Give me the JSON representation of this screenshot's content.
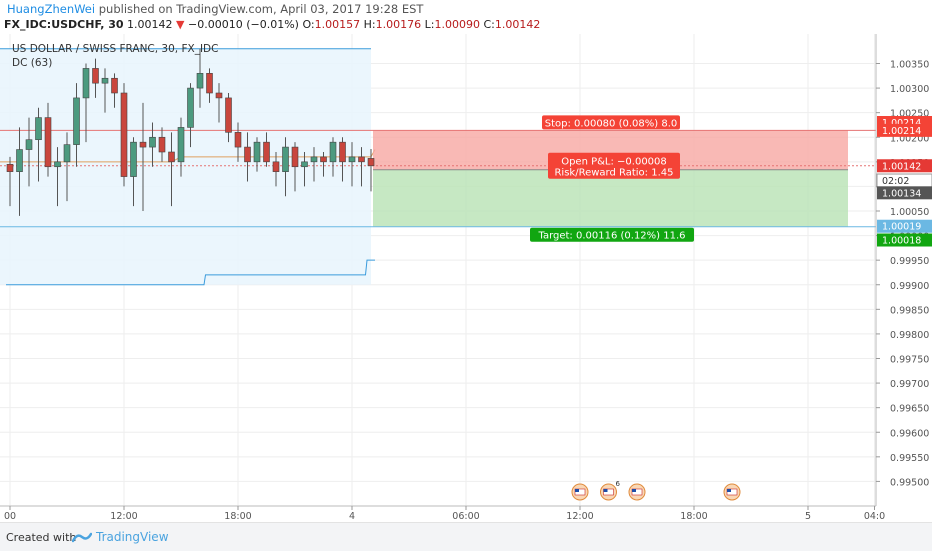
{
  "header": {
    "author": "HuangZhenWei",
    "published": "published on TradingView.com, April 03, 2017 19:28 EST",
    "symbol": "FX_IDC:USDCHF, 30",
    "last": "1.00142",
    "arrow": "▼",
    "change": "−0.00010 (−0.01%)",
    "o_label": "O:",
    "o_value": "1.00157",
    "h_label": "H:",
    "h_value": "1.00176",
    "l_label": "L:",
    "l_value": "1.00090",
    "c_label": "C:",
    "c_value": "1.00142"
  },
  "footer": {
    "created": "Created with",
    "brand": "TradingView"
  },
  "colors": {
    "up": "#4c9a7f",
    "down": "#c9463d",
    "dc": "#3a9bdc",
    "stop": "#f44336",
    "target": "#11a611",
    "axis_label": "#2a2e39"
  },
  "chart_data": {
    "type": "candlestick",
    "title": "US DOLLAR / SWISS FRANC, 30, FX_IDC",
    "indicator": "DC (63)",
    "ylim": [
      0.9945,
      1.0041
    ],
    "y_ticks": [
      "1.00350",
      "1.00300",
      "1.00250",
      "1.00200",
      "1.00150",
      "1.00100",
      "1.00050",
      "1.00000",
      "0.99950",
      "0.99900",
      "0.99850",
      "0.99800",
      "0.99750",
      "0.99700",
      "0.99650",
      "0.99600",
      "0.99550",
      "0.99500"
    ],
    "x_ticks": [
      {
        "label": "00",
        "i": 0
      },
      {
        "label": "12:00",
        "i": 12
      },
      {
        "label": "18:00",
        "i": 24
      },
      {
        "label": "4",
        "i": 36
      },
      {
        "label": "06:00",
        "i": 48
      },
      {
        "label": "12:00",
        "i": 60
      },
      {
        "label": "18:00",
        "i": 72
      },
      {
        "label": "5",
        "i": 84
      },
      {
        "label": "04:0",
        "i": 91
      }
    ],
    "candles": [
      {
        "o": 1.00145,
        "h": 1.0016,
        "l": 1.0006,
        "c": 1.0013
      },
      {
        "o": 1.0013,
        "h": 1.0022,
        "l": 1.0004,
        "c": 1.00175
      },
      {
        "o": 1.00175,
        "h": 1.0024,
        "l": 1.001,
        "c": 1.00195
      },
      {
        "o": 1.00195,
        "h": 1.0026,
        "l": 1.0011,
        "c": 1.0024
      },
      {
        "o": 1.0024,
        "h": 1.0027,
        "l": 1.0012,
        "c": 1.0014
      },
      {
        "o": 1.0014,
        "h": 1.0018,
        "l": 1.0006,
        "c": 1.0015
      },
      {
        "o": 1.0015,
        "h": 1.0021,
        "l": 1.0007,
        "c": 1.00185
      },
      {
        "o": 1.00185,
        "h": 1.0031,
        "l": 1.0014,
        "c": 1.0028
      },
      {
        "o": 1.0028,
        "h": 1.0035,
        "l": 1.0019,
        "c": 1.0034
      },
      {
        "o": 1.0034,
        "h": 1.0036,
        "l": 1.0028,
        "c": 1.0031
      },
      {
        "o": 1.0031,
        "h": 1.0034,
        "l": 1.0025,
        "c": 1.0032
      },
      {
        "o": 1.0032,
        "h": 1.0033,
        "l": 1.0026,
        "c": 1.0029
      },
      {
        "o": 1.0029,
        "h": 1.0031,
        "l": 1.001,
        "c": 1.0012
      },
      {
        "o": 1.0012,
        "h": 1.002,
        "l": 1.0006,
        "c": 1.0019
      },
      {
        "o": 1.0019,
        "h": 1.0027,
        "l": 1.0005,
        "c": 1.0018
      },
      {
        "o": 1.0018,
        "h": 1.0023,
        "l": 1.0014,
        "c": 1.002
      },
      {
        "o": 1.002,
        "h": 1.0022,
        "l": 1.0015,
        "c": 1.0017
      },
      {
        "o": 1.0017,
        "h": 1.0021,
        "l": 1.0006,
        "c": 1.0015
      },
      {
        "o": 1.0015,
        "h": 1.0024,
        "l": 1.0012,
        "c": 1.0022
      },
      {
        "o": 1.0022,
        "h": 1.0031,
        "l": 1.0018,
        "c": 1.003
      },
      {
        "o": 1.003,
        "h": 1.0038,
        "l": 1.0026,
        "c": 1.0033
      },
      {
        "o": 1.0033,
        "h": 1.0034,
        "l": 1.0027,
        "c": 1.0029
      },
      {
        "o": 1.0029,
        "h": 1.0031,
        "l": 1.0023,
        "c": 1.0028
      },
      {
        "o": 1.0028,
        "h": 1.0029,
        "l": 1.0019,
        "c": 1.0021
      },
      {
        "o": 1.0021,
        "h": 1.0023,
        "l": 1.0015,
        "c": 1.0018
      },
      {
        "o": 1.0018,
        "h": 1.0021,
        "l": 1.0011,
        "c": 1.0015
      },
      {
        "o": 1.0015,
        "h": 1.002,
        "l": 1.0013,
        "c": 1.0019
      },
      {
        "o": 1.0019,
        "h": 1.0021,
        "l": 1.0014,
        "c": 1.0015
      },
      {
        "o": 1.0015,
        "h": 1.0017,
        "l": 1.001,
        "c": 1.0013
      },
      {
        "o": 1.0013,
        "h": 1.002,
        "l": 1.0008,
        "c": 1.0018
      },
      {
        "o": 1.0018,
        "h": 1.0019,
        "l": 1.0009,
        "c": 1.0014
      },
      {
        "o": 1.0014,
        "h": 1.0017,
        "l": 1.001,
        "c": 1.0015
      },
      {
        "o": 1.0015,
        "h": 1.0018,
        "l": 1.0011,
        "c": 1.0016
      },
      {
        "o": 1.0016,
        "h": 1.0017,
        "l": 1.0012,
        "c": 1.0015
      },
      {
        "o": 1.0015,
        "h": 1.002,
        "l": 1.0012,
        "c": 1.0019
      },
      {
        "o": 1.0019,
        "h": 1.002,
        "l": 1.0011,
        "c": 1.0015
      },
      {
        "o": 1.0015,
        "h": 1.0019,
        "l": 1.001,
        "c": 1.0016
      },
      {
        "o": 1.0016,
        "h": 1.0018,
        "l": 1.001,
        "c": 1.0015
      },
      {
        "o": 1.00157,
        "h": 1.00176,
        "l": 1.0009,
        "c": 1.00142
      }
    ],
    "dc_upper": 1.0038,
    "dc_lower_steps": [
      {
        "from": 0,
        "to": 20,
        "v": 0.999
      },
      {
        "from": 21,
        "to": 37,
        "v": 0.9992
      },
      {
        "from": 38,
        "to": 38,
        "v": 0.9995
      }
    ],
    "dc_mid": 1.0015,
    "stop_price": 1.00214,
    "entry_price": 1.00134,
    "target_price": 1.00018,
    "current_price": 1.00142,
    "stop_label": "Stop: 0.00080 (0.08%) 8.0",
    "pl_label": "Open P&L: −0.00008",
    "rr_label": "Risk/Reward Ratio: 1.45",
    "target_label": "Target: 0.00116 (0.12%) 11.6",
    "price_labels": [
      {
        "text": "1.00214",
        "v": 1.0023,
        "bg": "#f44336"
      },
      {
        "text": "1.00214",
        "v": 1.00214,
        "bg": "#f44336"
      },
      {
        "text": "1.00142",
        "v": 1.00142,
        "bg": "#e53935"
      },
      {
        "text": "02:02",
        "v": 1.00112,
        "bg": "#ffffff",
        "fg": "#333",
        "border": "#999"
      },
      {
        "text": "1.00134",
        "v": 1.00087,
        "bg": "#555555"
      },
      {
        "text": "1.00019",
        "v": 1.00019,
        "bg": "#6bb8e3"
      },
      {
        "text": "1.00018",
        "v": 0.99991,
        "bg": "#11a611"
      }
    ],
    "events": [
      {
        "i": 60,
        "badge": ""
      },
      {
        "i": 63,
        "badge": "6"
      },
      {
        "i": 66,
        "badge": ""
      },
      {
        "i": 76,
        "badge": ""
      }
    ]
  }
}
